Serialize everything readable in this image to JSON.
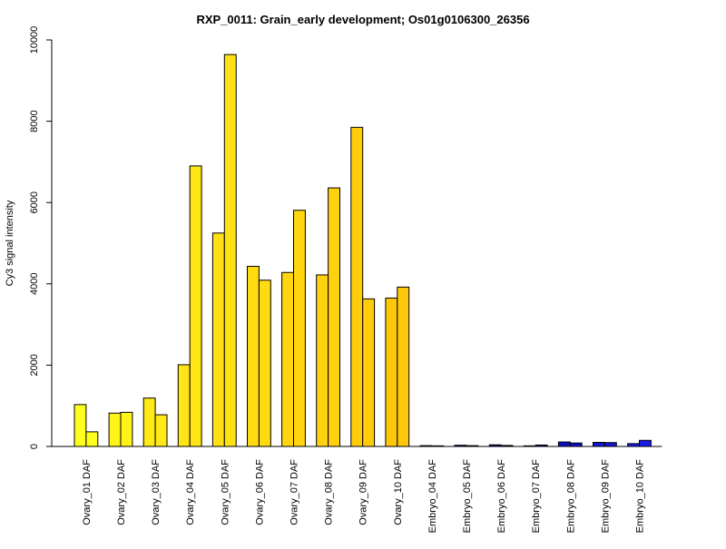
{
  "chart_data": {
    "type": "bar",
    "title": "RXP_0011: Grain_early development; Os01g0106300_26356",
    "xlabel": "",
    "ylabel": "Cy3 signal intensity",
    "ylim": [
      0,
      10000
    ],
    "yticks": [
      0,
      2000,
      4000,
      6000,
      8000,
      10000
    ],
    "grid": false,
    "legend": "none",
    "categories": [
      "Ovary_01 DAF",
      "Ovary_02 DAF",
      "Ovary_03 DAF",
      "Ovary_04 DAF",
      "Ovary_05 DAF",
      "Ovary_06 DAF",
      "Ovary_07 DAF",
      "Ovary_08 DAF",
      "Ovary_09 DAF",
      "Ovary_10 DAF",
      "Embryo_04 DAF",
      "Embryo_05 DAF",
      "Embryo_06 DAF",
      "Embryo_07 DAF",
      "Embryo_08 DAF",
      "Embryo_09 DAF",
      "Embryo_10 DAF"
    ],
    "bars_per_category": 2,
    "values": [
      [
        1030,
        360
      ],
      [
        820,
        840
      ],
      [
        1190,
        780
      ],
      [
        2010,
        6900
      ],
      [
        5250,
        9640
      ],
      [
        4430,
        4090
      ],
      [
        4280,
        5810
      ],
      [
        4220,
        6360
      ],
      [
        7850,
        3630
      ],
      [
        3650,
        3920
      ],
      [
        20,
        15
      ],
      [
        30,
        20
      ],
      [
        40,
        25
      ],
      [
        15,
        35
      ],
      [
        110,
        85
      ],
      [
        100,
        95
      ],
      [
        70,
        150
      ]
    ],
    "colors": [
      "#ffff1e",
      "#fff41a",
      "#ffea18",
      "#ffe516",
      "#ffe014",
      "#ffdb12",
      "#ffd610",
      "#ffd10e",
      "#ffcc0c",
      "#ffc80a",
      "#0b0b8a",
      "#0b0b8a",
      "#0b0b8a",
      "#0b0b8a",
      "#1010c0",
      "#1515d5",
      "#1a1ae8"
    ]
  }
}
